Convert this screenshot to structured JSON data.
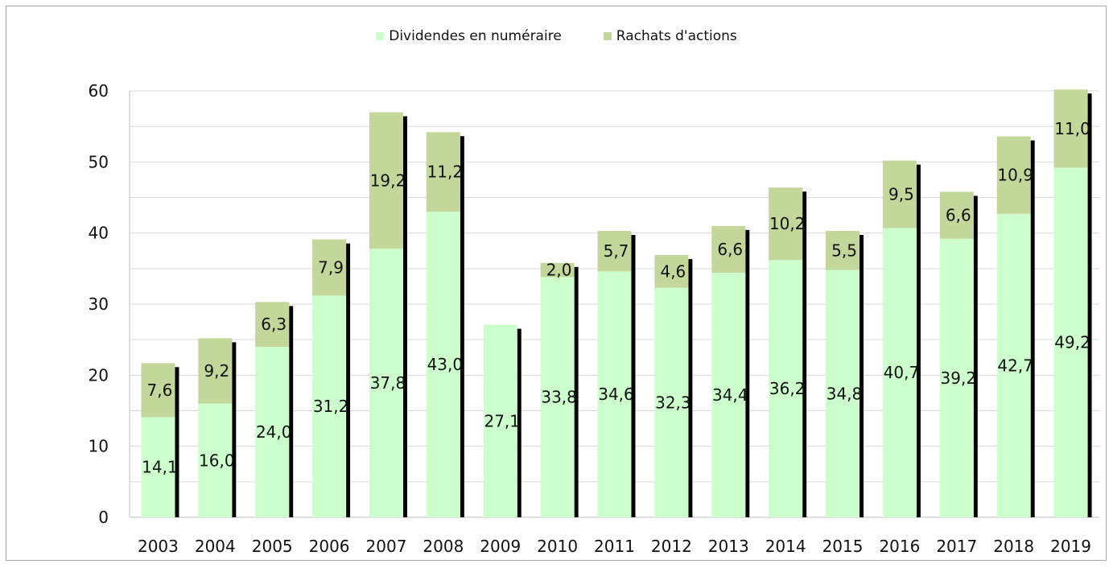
{
  "chart_data": {
    "type": "bar",
    "stacked": true,
    "categories": [
      "2003",
      "2004",
      "2005",
      "2006",
      "2007",
      "2008",
      "2009",
      "2010",
      "2011",
      "2012",
      "2013",
      "2014",
      "2015",
      "2016",
      "2017",
      "2018",
      "2019"
    ],
    "series": [
      {
        "name": "Dividendes en numéraire",
        "color": "#ccffcc",
        "values": [
          14.1,
          16.0,
          24.0,
          31.2,
          37.8,
          43.0,
          27.1,
          33.8,
          34.6,
          32.3,
          34.4,
          36.2,
          34.8,
          40.7,
          39.2,
          42.7,
          49.2
        ],
        "labels": [
          "14,1",
          "16,0",
          "24,0",
          "31,2",
          "37,8",
          "43,0",
          "27,1",
          "33,8",
          "34,6",
          "32,3",
          "34,4",
          "36,2",
          "34,8",
          "40,7",
          "39,2",
          "42,7",
          "49,2"
        ]
      },
      {
        "name": "Rachats d'actions",
        "color": "#c4d79b",
        "values": [
          7.6,
          9.2,
          6.3,
          7.9,
          19.2,
          11.2,
          0,
          2.0,
          5.7,
          4.6,
          6.6,
          10.2,
          5.5,
          9.5,
          6.6,
          10.9,
          11.0
        ],
        "labels": [
          "7,6",
          "9,2",
          "6,3",
          "7,9",
          "19,2",
          "11,2",
          "",
          "2,0",
          "5,7",
          "4,6",
          "6,6",
          "10,2",
          "5,5",
          "9,5",
          "6,6",
          "10,9",
          "11,0"
        ]
      }
    ],
    "yticks": [
      "0",
      "10",
      "20",
      "30",
      "40",
      "50",
      "60"
    ],
    "ylim": [
      0,
      60
    ],
    "title": "",
    "xlabel": "",
    "ylabel": "",
    "grid": true,
    "legend_position": "top-center",
    "shadow_color": "#000000"
  }
}
